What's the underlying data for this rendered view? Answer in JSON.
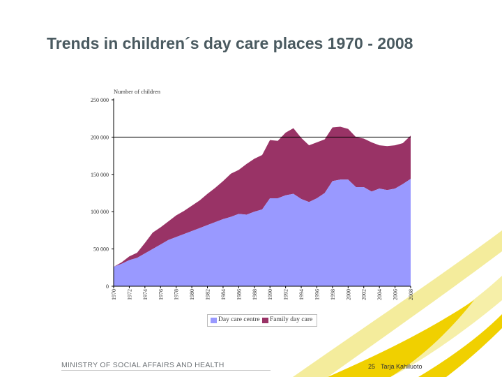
{
  "slide": {
    "title": "Trends in children´s day care places 1970 - 2008",
    "footer_ministry": "MINISTRY OF SOCIAL AFFAIRS AND HEALTH",
    "page_number": "25",
    "author": "Tarja Kahiluoto"
  },
  "colors": {
    "day_care_centre": "#9999ff",
    "family_day_care": "#993366",
    "title": "#4a5a60",
    "swoosh_light": "#f4ec9c",
    "swoosh_dark": "#f0d000"
  },
  "chart_data": {
    "type": "area",
    "stacked": true,
    "ylabel": "Number of children",
    "ylim": [
      0,
      250000
    ],
    "y_ticks": [
      0,
      50000,
      100000,
      150000,
      200000,
      250000
    ],
    "y_tick_labels": [
      "0",
      "50 000",
      "100 000",
      "150 000",
      "200 000",
      "250 000"
    ],
    "x_ticks": [
      1970,
      1972,
      1974,
      1976,
      1978,
      1980,
      1982,
      1984,
      1986,
      1988,
      1990,
      1992,
      1994,
      1996,
      1998,
      2000,
      2002,
      2004,
      2006,
      2008
    ],
    "x": [
      1970,
      1971,
      1972,
      1973,
      1974,
      1975,
      1976,
      1977,
      1978,
      1979,
      1980,
      1981,
      1982,
      1983,
      1984,
      1985,
      1986,
      1987,
      1988,
      1989,
      1990,
      1991,
      1992,
      1993,
      1994,
      1995,
      1996,
      1997,
      1998,
      1999,
      2000,
      2001,
      2002,
      2003,
      2004,
      2005,
      2006,
      2007,
      2008
    ],
    "reference_line": 200000,
    "legend_position": "bottom",
    "series": [
      {
        "name": "Day care centre",
        "values": [
          26000,
          30000,
          35000,
          38000,
          44000,
          50000,
          56000,
          62000,
          66000,
          70000,
          74000,
          78000,
          82000,
          86000,
          90000,
          93000,
          97000,
          96000,
          100000,
          103000,
          118000,
          118000,
          122000,
          124000,
          117000,
          113000,
          118000,
          125000,
          141000,
          143000,
          143000,
          133000,
          133000,
          127000,
          131000,
          129000,
          131000,
          137000,
          144000
        ]
      },
      {
        "name": "Family day care",
        "values": [
          0,
          2000,
          5000,
          7000,
          14000,
          22000,
          23000,
          25000,
          29000,
          31000,
          34000,
          37000,
          42000,
          46000,
          51000,
          58000,
          59000,
          68000,
          71000,
          73000,
          78000,
          77000,
          84000,
          88000,
          82000,
          76000,
          75000,
          72000,
          72000,
          71000,
          68000,
          67000,
          65000,
          66000,
          58000,
          59000,
          58000,
          55000,
          58000
        ]
      }
    ]
  }
}
